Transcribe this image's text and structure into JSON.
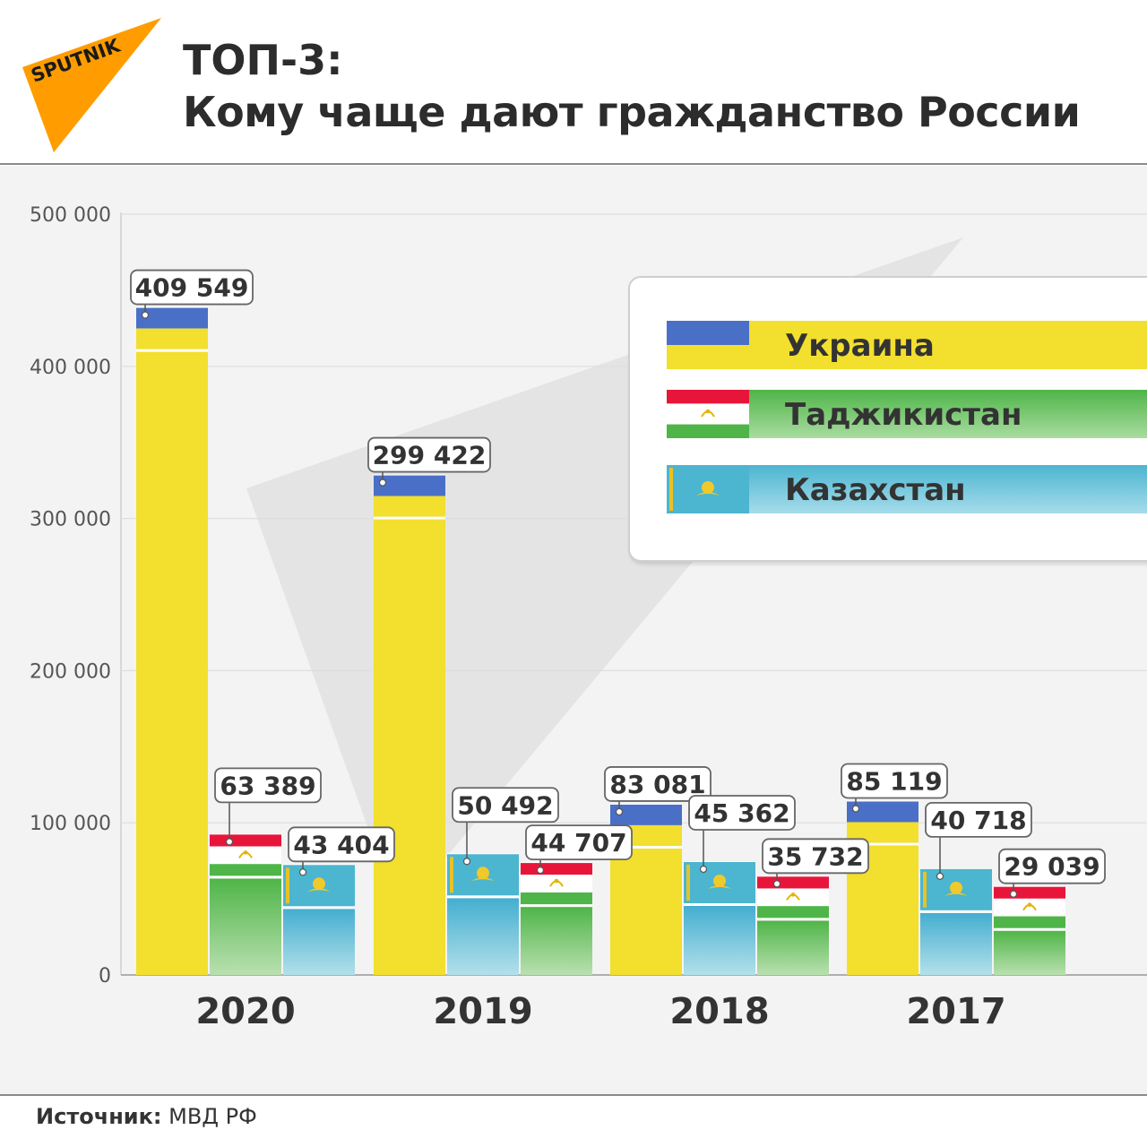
{
  "header": {
    "title_line1": "ТОП-3:",
    "title_line2": "Кому чаще дают гражданство России",
    "logo_text": "SPUTNIK"
  },
  "footer": {
    "source_label": "Источник:",
    "source_value": "МВД РФ"
  },
  "colors": {
    "ukraine": "#f2df2e",
    "ukraine_blue": "#4a6fc6",
    "tajikistan": "#4fb548",
    "tajik_red": "#e8153a",
    "kazakhstan": "#4cb5cf",
    "logo": "#ff9c00"
  },
  "legend": [
    {
      "key": "ukraine",
      "label": "Украина",
      "flag": "ukraine-flag"
    },
    {
      "key": "tajikistan",
      "label": "Таджикистан",
      "flag": "tajikistan-flag"
    },
    {
      "key": "kazakhstan",
      "label": "Казахстан",
      "flag": "kazakhstan-flag"
    }
  ],
  "chart_data": {
    "type": "bar",
    "title": "Кому чаще дают гражданство России",
    "ylim": [
      0,
      500000
    ],
    "yticks": [
      0,
      100000,
      200000,
      300000,
      400000,
      500000
    ],
    "ytick_labels": [
      "0",
      "100 000",
      "200 000",
      "300 000",
      "400 000",
      "500 000"
    ],
    "grid": true,
    "legend_position": "top-right",
    "categories": [
      "2020",
      "2019",
      "2018",
      "2017"
    ],
    "groups": [
      {
        "year": "2020",
        "bars": [
          {
            "country": "ukraine",
            "value": 409549,
            "label": "409 549"
          },
          {
            "country": "tajikistan",
            "value": 63389,
            "label": "63 389"
          },
          {
            "country": "kazakhstan",
            "value": 43404,
            "label": "43 404"
          }
        ]
      },
      {
        "year": "2019",
        "bars": [
          {
            "country": "ukraine",
            "value": 299422,
            "label": "299 422"
          },
          {
            "country": "kazakhstan",
            "value": 50492,
            "label": "50 492"
          },
          {
            "country": "tajikistan",
            "value": 44707,
            "label": "44 707"
          }
        ]
      },
      {
        "year": "2018",
        "bars": [
          {
            "country": "ukraine",
            "value": 83081,
            "label": "83 081"
          },
          {
            "country": "kazakhstan",
            "value": 45362,
            "label": "45 362"
          },
          {
            "country": "tajikistan",
            "value": 35732,
            "label": "35 732"
          }
        ]
      },
      {
        "year": "2017",
        "bars": [
          {
            "country": "ukraine",
            "value": 85119,
            "label": "85 119"
          },
          {
            "country": "kazakhstan",
            "value": 40718,
            "label": "40 718"
          },
          {
            "country": "tajikistan",
            "value": 29039,
            "label": "29 039"
          }
        ]
      }
    ]
  }
}
